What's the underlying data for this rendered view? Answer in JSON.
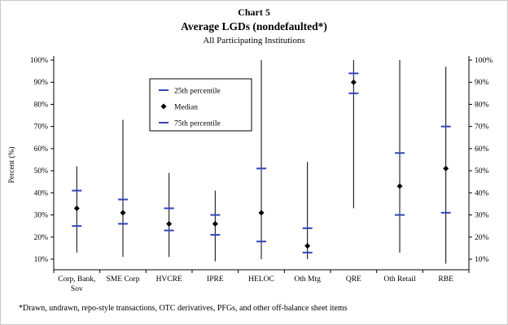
{
  "title": {
    "chart_number": "Chart 5",
    "main": "Average LGDs (nondefaulted*)",
    "subtitle": "All Participating Institutions"
  },
  "footnote": "*Drawn, undrawn, repo-style transactions, OTC derivatives, PFGs, and other off-balance sheet items",
  "chart_data": {
    "type": "box-whisker",
    "title": "Chart 5",
    "subtitle": "Average LGDs (nondefaulted*)",
    "description_line": "All Participating Institutions",
    "ylabel": "Percent (%)",
    "grid": false,
    "legend_position": "upper-left-inside",
    "colors": {
      "percentile_dash": "#3344bb",
      "median": "#000000",
      "range_line": "#000000"
    },
    "y_axis": {
      "min": 10,
      "max": 100,
      "tick_step": 10,
      "sides": [
        "left",
        "right"
      ],
      "ticks": [
        {
          "value": 10,
          "label": "10%"
        },
        {
          "value": 20,
          "label": "20%"
        },
        {
          "value": 30,
          "label": "30%"
        },
        {
          "value": 40,
          "label": "40%"
        },
        {
          "value": 50,
          "label": "50%"
        },
        {
          "value": 60,
          "label": "60%"
        },
        {
          "value": 70,
          "label": "70%"
        },
        {
          "value": 80,
          "label": "80%"
        },
        {
          "value": 90,
          "label": "90%"
        },
        {
          "value": 100,
          "label": "100%"
        }
      ]
    },
    "legend": [
      {
        "label": "25th percentile",
        "marker": "dash",
        "color": "#3344bb"
      },
      {
        "label": "Median",
        "marker": "diamond",
        "color": "#000000"
      },
      {
        "label": "75th percentile",
        "marker": "dash",
        "color": "#3344bb"
      }
    ],
    "categories": [
      "Corp, Bank, Sov",
      "SME Corp",
      "HVCRE",
      "IPRE",
      "HELOC",
      "Oth Mtg",
      "QRE",
      "Oth Retail",
      "RBE"
    ],
    "series": [
      {
        "category": "Corp, Bank, Sov",
        "label_lines": [
          "Corp, Bank,",
          "Sov"
        ],
        "min": 13,
        "p25": 25,
        "median": 33,
        "p75": 41,
        "max": 52
      },
      {
        "category": "SME Corp",
        "label_lines": [
          "SME Corp"
        ],
        "min": 11,
        "p25": 26,
        "median": 31,
        "p75": 37,
        "max": 73
      },
      {
        "category": "HVCRE",
        "label_lines": [
          "HVCRE"
        ],
        "min": 11,
        "p25": 23,
        "median": 26,
        "p75": 33,
        "max": 49
      },
      {
        "category": "IPRE",
        "label_lines": [
          "IPRE"
        ],
        "min": 9,
        "p25": 21,
        "median": 26,
        "p75": 30,
        "max": 41
      },
      {
        "category": "HELOC",
        "label_lines": [
          "HELOC"
        ],
        "min": 10,
        "p25": 18,
        "median": 31,
        "p75": 51,
        "max": 100
      },
      {
        "category": "Oth Mtg",
        "label_lines": [
          "Oth Mtg"
        ],
        "min": 10,
        "p25": 13,
        "median": 16,
        "p75": 24,
        "max": 54
      },
      {
        "category": "QRE",
        "label_lines": [
          "QRE"
        ],
        "min": 33,
        "p25": 85,
        "median": 90,
        "p75": 94,
        "max": 100
      },
      {
        "category": "Oth Retail",
        "label_lines": [
          "Oth Retail"
        ],
        "min": 13,
        "p25": 30,
        "median": 43,
        "p75": 58,
        "max": 100
      },
      {
        "category": "RBE",
        "label_lines": [
          "RBE"
        ],
        "min": 8,
        "p25": 31,
        "median": 51,
        "p75": 70,
        "max": 97
      }
    ]
  }
}
